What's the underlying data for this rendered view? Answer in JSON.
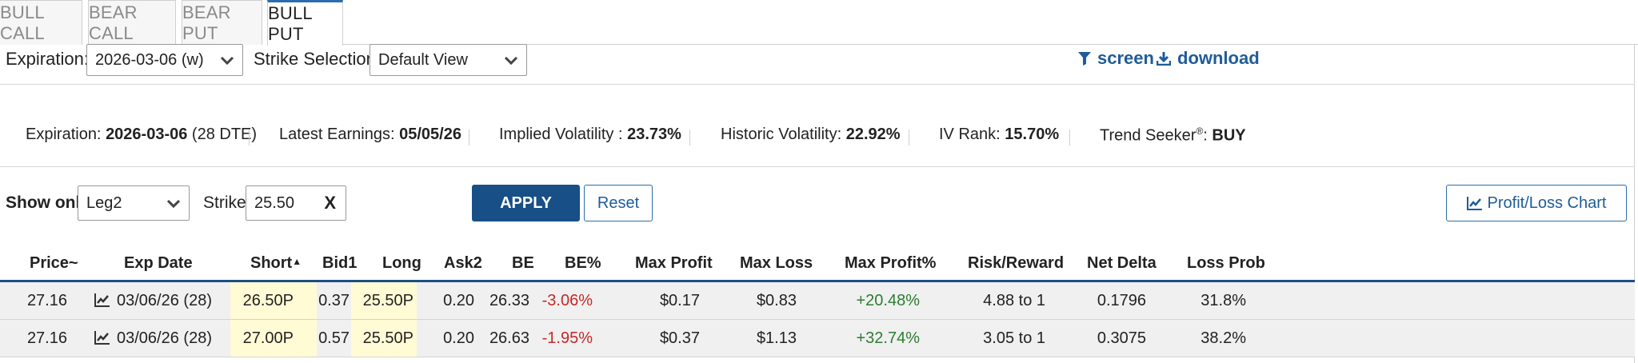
{
  "tabs": [
    "BULL CALL",
    "BEAR CALL",
    "BEAR PUT",
    "BULL PUT"
  ],
  "active_tab": "BULL PUT",
  "controls": {
    "expiration_label": "Expiration:",
    "expiration_value": "2026-03-06 (w)",
    "strike_selection_label": "Strike Selection:",
    "strike_selection_value": "Default View",
    "screen_label": "screen",
    "download_label": "download"
  },
  "info_bar": {
    "expiration_label": "Expiration: ",
    "expiration_value": "2026-03-06",
    "expiration_dte": " (28 DTE)",
    "earnings_label": "Latest Earnings: ",
    "earnings_value": "05/05/26",
    "iv_label": "Implied Volatility : ",
    "iv_value": "23.73%",
    "hv_label": "Historic Volatility: ",
    "hv_value": "22.92%",
    "ivrank_label": "IV Rank: ",
    "ivrank_value": "15.70%",
    "trend_label": "Trend Seeker",
    "trend_reg": "®",
    "trend_colon": ": ",
    "trend_value": "BUY"
  },
  "filters": {
    "show_only_label": "Show only:",
    "show_only_value": "Leg2",
    "strike_label": "Strike:",
    "strike_value": "25.50",
    "clear_label": "X",
    "apply_label": "APPLY",
    "reset_label": "Reset",
    "pl_chart_label": "Profit/Loss Chart"
  },
  "table": {
    "headers": [
      "Price~",
      "Exp Date",
      "Short",
      "Bid1",
      "Long",
      "Ask2",
      "BE",
      "BE%",
      "Max Profit",
      "Max Loss",
      "Max Profit%",
      "Risk/Reward",
      "Net Delta",
      "Loss Prob"
    ],
    "sort_indicator": "▲",
    "rows": [
      {
        "price": "27.16",
        "exp": "03/06/26 (28)",
        "short": "26.50P",
        "bid1": "0.37",
        "long": "25.50P",
        "ask2": "0.20",
        "be": "26.33",
        "be_pct": "-3.06%",
        "max_profit": "$0.17",
        "max_loss": "$0.83",
        "max_profit_pct": "+20.48%",
        "risk_reward": "4.88 to 1",
        "net_delta": "0.1796",
        "loss_prob": "31.8%"
      },
      {
        "price": "27.16",
        "exp": "03/06/26 (28)",
        "short": "27.00P",
        "bid1": "0.57",
        "long": "25.50P",
        "ask2": "0.20",
        "be": "26.63",
        "be_pct": "-1.95%",
        "max_profit": "$0.37",
        "max_loss": "$1.13",
        "max_profit_pct": "+32.74%",
        "risk_reward": "3.05 to 1",
        "net_delta": "0.3075",
        "loss_prob": "38.2%"
      }
    ]
  },
  "colors": {
    "accent": "#174f86",
    "link": "#1f5c99",
    "negative": "#c62828",
    "positive": "#2e7d32",
    "highlight": "#fffbd5"
  }
}
